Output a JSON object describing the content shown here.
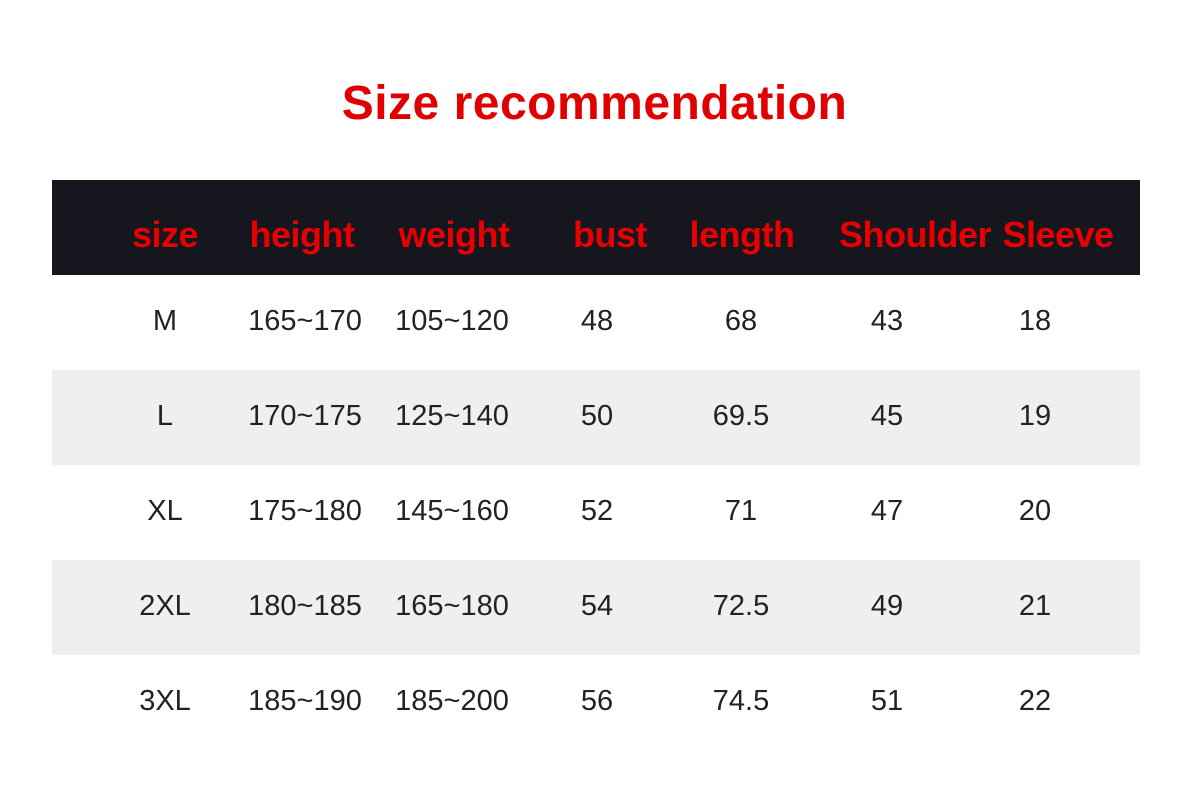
{
  "title": "Size recommendation",
  "colors": {
    "title": "#e00000",
    "header_bg": "#16161e",
    "header_text": "#e60000",
    "alt_row": "#efefef"
  },
  "table": {
    "headers": [
      "size",
      "height",
      "weight",
      "bust",
      "length",
      "Shoulder",
      "Sleeve"
    ],
    "rows": [
      [
        "M",
        "165~170",
        "105~120",
        "48",
        "68",
        "43",
        "18"
      ],
      [
        "L",
        "170~175",
        "125~140",
        "50",
        "69.5",
        "45",
        "19"
      ],
      [
        "XL",
        "175~180",
        "145~160",
        "52",
        "71",
        "47",
        "20"
      ],
      [
        "2XL",
        "180~185",
        "165~180",
        "54",
        "72.5",
        "49",
        "21"
      ],
      [
        "3XL",
        "185~190",
        "185~200",
        "56",
        "74.5",
        "51",
        "22"
      ]
    ]
  }
}
